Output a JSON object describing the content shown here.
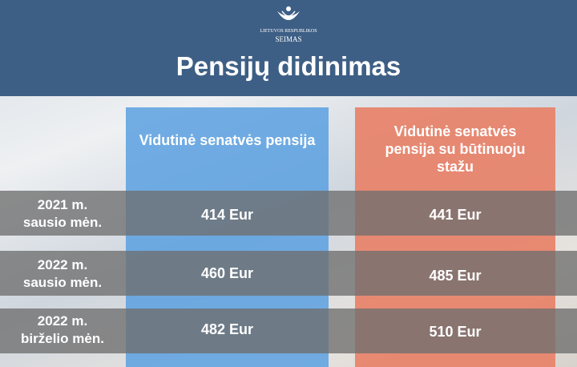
{
  "header": {
    "logo_line1": "LIETUVOS RESPUBLIKOS",
    "logo_line2": "SEIMAS",
    "title": "Pensijų didinimas"
  },
  "table": {
    "columns": [
      "Vidutinė senatvės pensija",
      "Vidutinė senatvės pensija su būtinuoju stažu"
    ],
    "rows": [
      [
        "2021 m. sausio mėn.",
        "414 Eur",
        "441 Eur"
      ],
      [
        "2022 m. sausio mėn.",
        "460 Eur",
        "485 Eur"
      ],
      [
        "2022 m. birželio mėn.",
        "482 Eur",
        "510 Eur"
      ]
    ]
  }
}
